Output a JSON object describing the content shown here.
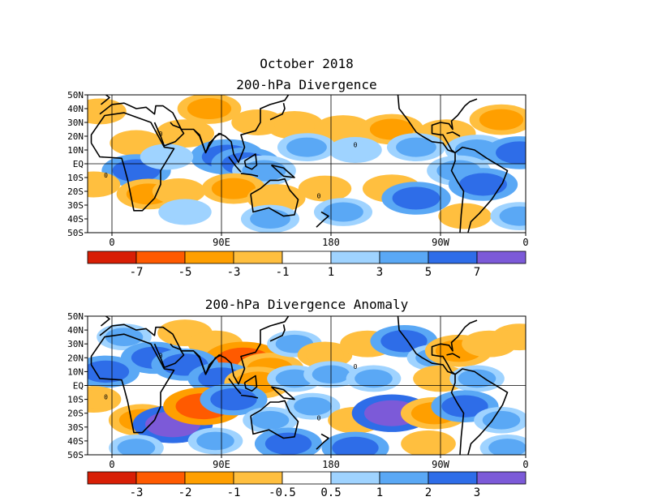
{
  "header": {
    "title": "October 2018"
  },
  "panels": [
    {
      "title": "200-hPa Divergence",
      "lat_labels": [
        "50N",
        "40N",
        "30N",
        "20N",
        "10N",
        "EQ",
        "10S",
        "20S",
        "30S",
        "40S",
        "50S"
      ],
      "lon_labels": [
        "0",
        "90E",
        "180",
        "90W",
        "0"
      ],
      "colorbar": {
        "colors": [
          "#d81e05",
          "#ff5a00",
          "#ff9f00",
          "#ffbf3f",
          "#ffffff",
          "#9fd3ff",
          "#5aa8f5",
          "#2e6de8",
          "#7c5ad8"
        ],
        "labels": [
          "-7",
          "-5",
          "-3",
          "-1",
          "1",
          "3",
          "5",
          "7"
        ]
      },
      "contour_label": "0"
    },
    {
      "title": "200-hPa Divergence Anomaly",
      "lat_labels": [
        "50N",
        "40N",
        "30N",
        "20N",
        "10N",
        "EQ",
        "10S",
        "20S",
        "30S",
        "40S",
        "50S"
      ],
      "lon_labels": [
        "0",
        "90E",
        "180",
        "90W",
        "0"
      ],
      "colorbar": {
        "colors": [
          "#d81e05",
          "#ff5a00",
          "#ff9f00",
          "#ffbf3f",
          "#ffffff",
          "#9fd3ff",
          "#5aa8f5",
          "#2e6de8",
          "#7c5ad8"
        ],
        "labels": [
          "-3",
          "-2",
          "-1",
          "-0.5",
          "0.5",
          "1",
          "2",
          "3"
        ]
      },
      "contour_label": "0"
    }
  ],
  "map_fields": {
    "field_1": [
      {
        "lon": 60,
        "lat": 22,
        "v": -3
      },
      {
        "lon": 80,
        "lat": 40,
        "v": -4
      },
      {
        "lon": 120,
        "lat": 30,
        "v": -2
      },
      {
        "lon": 150,
        "lat": 28,
        "v": -3
      },
      {
        "lon": 190,
        "lat": 25,
        "v": -3
      },
      {
        "lon": 230,
        "lat": 25,
        "v": -4
      },
      {
        "lon": 275,
        "lat": 22,
        "v": -3
      },
      {
        "lon": 320,
        "lat": 32,
        "v": -4
      },
      {
        "lon": 350,
        "lat": 38,
        "v": -2
      },
      {
        "lon": 20,
        "lat": 15,
        "v": -2
      },
      {
        "lon": 95,
        "lat": 5,
        "v": 6
      },
      {
        "lon": 110,
        "lat": 0,
        "v": 5
      },
      {
        "lon": 125,
        "lat": -5,
        "v": 4
      },
      {
        "lon": 20,
        "lat": -5,
        "v": 5
      },
      {
        "lon": 45,
        "lat": 5,
        "v": 2
      },
      {
        "lon": 160,
        "lat": 12,
        "v": 3
      },
      {
        "lon": 200,
        "lat": 10,
        "v": 2
      },
      {
        "lon": 250,
        "lat": 12,
        "v": 3
      },
      {
        "lon": 300,
        "lat": 10,
        "v": 4
      },
      {
        "lon": 335,
        "lat": 8,
        "v": 5
      },
      {
        "lon": 285,
        "lat": -5,
        "v": 4
      },
      {
        "lon": 305,
        "lat": -15,
        "v": 5
      },
      {
        "lon": 30,
        "lat": -22,
        "v": -4
      },
      {
        "lon": 55,
        "lat": -20,
        "v": -2
      },
      {
        "lon": 100,
        "lat": -18,
        "v": -4
      },
      {
        "lon": 135,
        "lat": -25,
        "v": -3
      },
      {
        "lon": 175,
        "lat": -18,
        "v": -2
      },
      {
        "lon": 230,
        "lat": -18,
        "v": -3
      },
      {
        "lon": 190,
        "lat": -35,
        "v": 3
      },
      {
        "lon": 250,
        "lat": -25,
        "v": 5
      },
      {
        "lon": 290,
        "lat": -38,
        "v": -2
      },
      {
        "lon": 335,
        "lat": -38,
        "v": 3
      },
      {
        "lon": 345,
        "lat": -15,
        "v": -2
      },
      {
        "lon": 130,
        "lat": -40,
        "v": 3
      },
      {
        "lon": 60,
        "lat": -35,
        "v": 2
      }
    ],
    "field_2": [
      {
        "lon": 10,
        "lat": 35,
        "v": 1
      },
      {
        "lon": 35,
        "lat": 20,
        "v": 2
      },
      {
        "lon": 60,
        "lat": 38,
        "v": -1
      },
      {
        "lon": 85,
        "lat": 30,
        "v": -1
      },
      {
        "lon": 108,
        "lat": 18,
        "v": -3
      },
      {
        "lon": 130,
        "lat": 12,
        "v": -2
      },
      {
        "lon": 150,
        "lat": 30,
        "v": 1
      },
      {
        "lon": 175,
        "lat": 22,
        "v": -1
      },
      {
        "lon": 210,
        "lat": 30,
        "v": -1
      },
      {
        "lon": 240,
        "lat": 32,
        "v": 2
      },
      {
        "lon": 265,
        "lat": 20,
        "v": 1
      },
      {
        "lon": 285,
        "lat": 25,
        "v": -2
      },
      {
        "lon": 310,
        "lat": 30,
        "v": -1
      },
      {
        "lon": 335,
        "lat": 35,
        "v": -1
      },
      {
        "lon": 355,
        "lat": 10,
        "v": 2
      },
      {
        "lon": 60,
        "lat": 15,
        "v": 2
      },
      {
        "lon": 90,
        "lat": 5,
        "v": 2
      },
      {
        "lon": 120,
        "lat": 2,
        "v": -2
      },
      {
        "lon": 150,
        "lat": 5,
        "v": 1
      },
      {
        "lon": 180,
        "lat": 8,
        "v": 1
      },
      {
        "lon": 215,
        "lat": 5,
        "v": 1
      },
      {
        "lon": 270,
        "lat": 5,
        "v": -1
      },
      {
        "lon": 300,
        "lat": 5,
        "v": 1
      },
      {
        "lon": 25,
        "lat": -25,
        "v": -2
      },
      {
        "lon": 50,
        "lat": -28,
        "v": 3
      },
      {
        "lon": 75,
        "lat": -15,
        "v": -3
      },
      {
        "lon": 100,
        "lat": -10,
        "v": 2
      },
      {
        "lon": 130,
        "lat": -25,
        "v": 1
      },
      {
        "lon": 165,
        "lat": -15,
        "v": 1
      },
      {
        "lon": 200,
        "lat": -25,
        "v": -1
      },
      {
        "lon": 230,
        "lat": -20,
        "v": 3
      },
      {
        "lon": 265,
        "lat": -20,
        "v": -2
      },
      {
        "lon": 290,
        "lat": -15,
        "v": 2
      },
      {
        "lon": 320,
        "lat": -25,
        "v": 1
      },
      {
        "lon": 345,
        "lat": -10,
        "v": -1
      },
      {
        "lon": 20,
        "lat": -45,
        "v": 1
      },
      {
        "lon": 85,
        "lat": -40,
        "v": 1
      },
      {
        "lon": 145,
        "lat": -42,
        "v": 2
      },
      {
        "lon": 200,
        "lat": -45,
        "v": 2
      },
      {
        "lon": 260,
        "lat": -42,
        "v": -1
      },
      {
        "lon": 325,
        "lat": -45,
        "v": 1
      }
    ]
  }
}
